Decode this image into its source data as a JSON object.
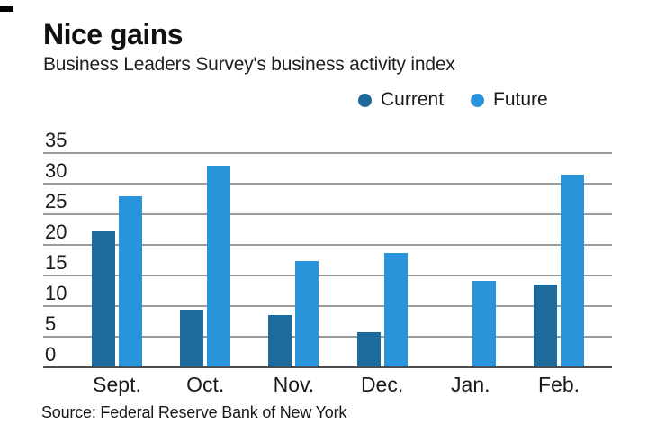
{
  "header": {
    "title": "Nice gains",
    "subtitle": "Business Leaders Survey's business activity index"
  },
  "source": "Source: Federal Reserve Bank of New York",
  "chart_data": {
    "type": "bar",
    "title": "Nice gains",
    "subtitle": "Business Leaders Survey's business activity index",
    "categories": [
      "Sept.",
      "Oct.",
      "Nov.",
      "Dec.",
      "Jan.",
      "Feb."
    ],
    "series": [
      {
        "name": "Current",
        "color": "#1d6a9c",
        "values": [
          22.3,
          9.4,
          8.6,
          5.7,
          0,
          13.6
        ]
      },
      {
        "name": "Future",
        "color": "#2a94da",
        "values": [
          28.0,
          32.9,
          17.3,
          18.7,
          14.1,
          31.4
        ]
      }
    ],
    "ylim": [
      0,
      35
    ],
    "yticks": [
      0,
      5,
      10,
      15,
      20,
      25,
      30,
      35
    ],
    "grid": true,
    "legend_position": "top-right",
    "source": "Source: Federal Reserve Bank of New York",
    "colors": {
      "grid": "#9b9b9b",
      "axis": "#4d4d4d",
      "text": "#1a1a1a",
      "background": "#ffffff"
    }
  }
}
